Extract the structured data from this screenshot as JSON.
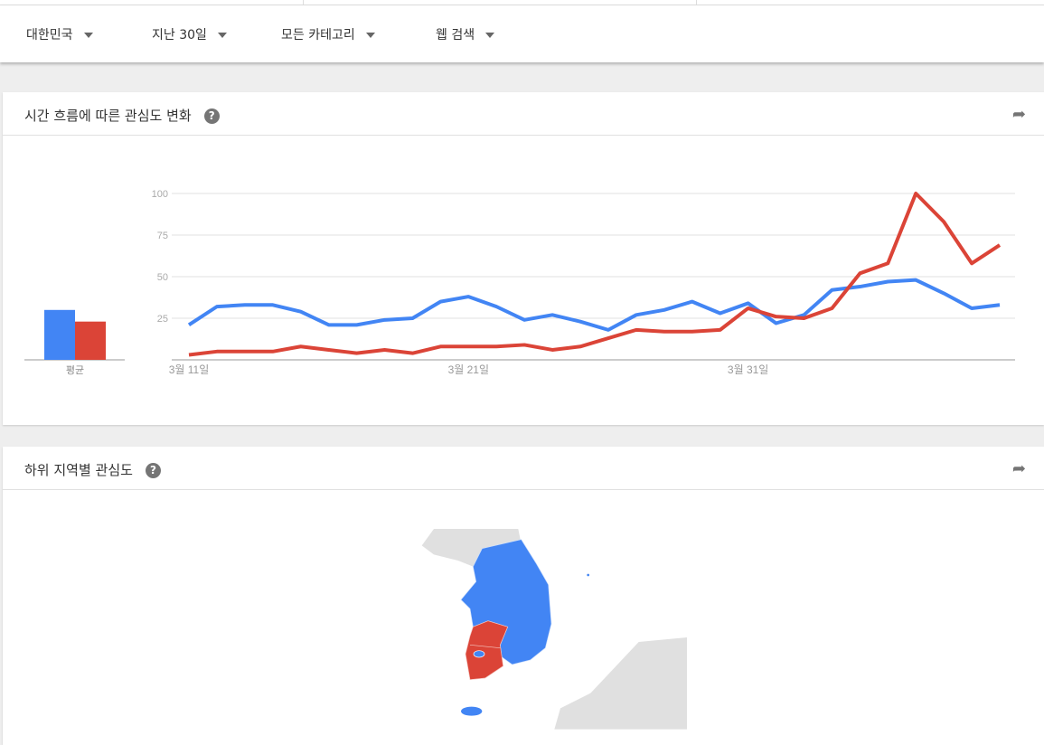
{
  "filters": [
    {
      "label": "대한민국"
    },
    {
      "label": "지난 30일"
    },
    {
      "label": "모든 카테고리"
    },
    {
      "label": "웹 검색"
    }
  ],
  "interest_over_time": {
    "title": "시간 흐름에 따른 관심도 변화",
    "help": "?",
    "share_icon": "share-icon"
  },
  "subregion": {
    "title": "하위 지역별 관심도",
    "help": "?",
    "share_icon": "share-icon"
  },
  "colors": {
    "blue": "#4285f4",
    "red": "#db4437"
  },
  "chart_data": {
    "type": "line",
    "ylim": [
      0,
      100
    ],
    "yticks": [
      "100",
      "75",
      "50",
      "25"
    ],
    "xtick_labels": [
      "3월 11일",
      "3월 21일",
      "3월 31일"
    ],
    "grid": true,
    "x": [
      "3/11",
      "3/12",
      "3/13",
      "3/14",
      "3/15",
      "3/16",
      "3/17",
      "3/18",
      "3/19",
      "3/20",
      "3/21",
      "3/22",
      "3/23",
      "3/24",
      "3/25",
      "3/26",
      "3/27",
      "3/28",
      "3/29",
      "3/30",
      "3/31",
      "4/1",
      "4/2",
      "4/3",
      "4/4",
      "4/5",
      "4/6",
      "4/7",
      "4/8",
      "4/9"
    ],
    "series": [
      {
        "color": "#4285f4",
        "values": [
          21,
          32,
          33,
          33,
          29,
          21,
          21,
          24,
          25,
          35,
          38,
          32,
          24,
          27,
          23,
          18,
          27,
          30,
          35,
          28,
          34,
          22,
          27,
          42,
          44,
          47,
          48,
          40,
          31,
          33
        ]
      },
      {
        "color": "#db4437",
        "values": [
          3,
          5,
          5,
          5,
          8,
          6,
          4,
          6,
          4,
          8,
          8,
          8,
          9,
          6,
          8,
          13,
          18,
          17,
          17,
          18,
          31,
          26,
          25,
          31,
          52,
          58,
          100,
          83,
          58,
          69
        ]
      }
    ],
    "averages": {
      "label": "평균",
      "values": [
        30,
        23
      ]
    }
  },
  "map": {
    "regions_red": [
      "전라남도",
      "광주",
      "전라북도"
    ],
    "regions_blue": [
      "서울",
      "경기도",
      "강원도",
      "충청도",
      "경상도",
      "제주도"
    ]
  }
}
